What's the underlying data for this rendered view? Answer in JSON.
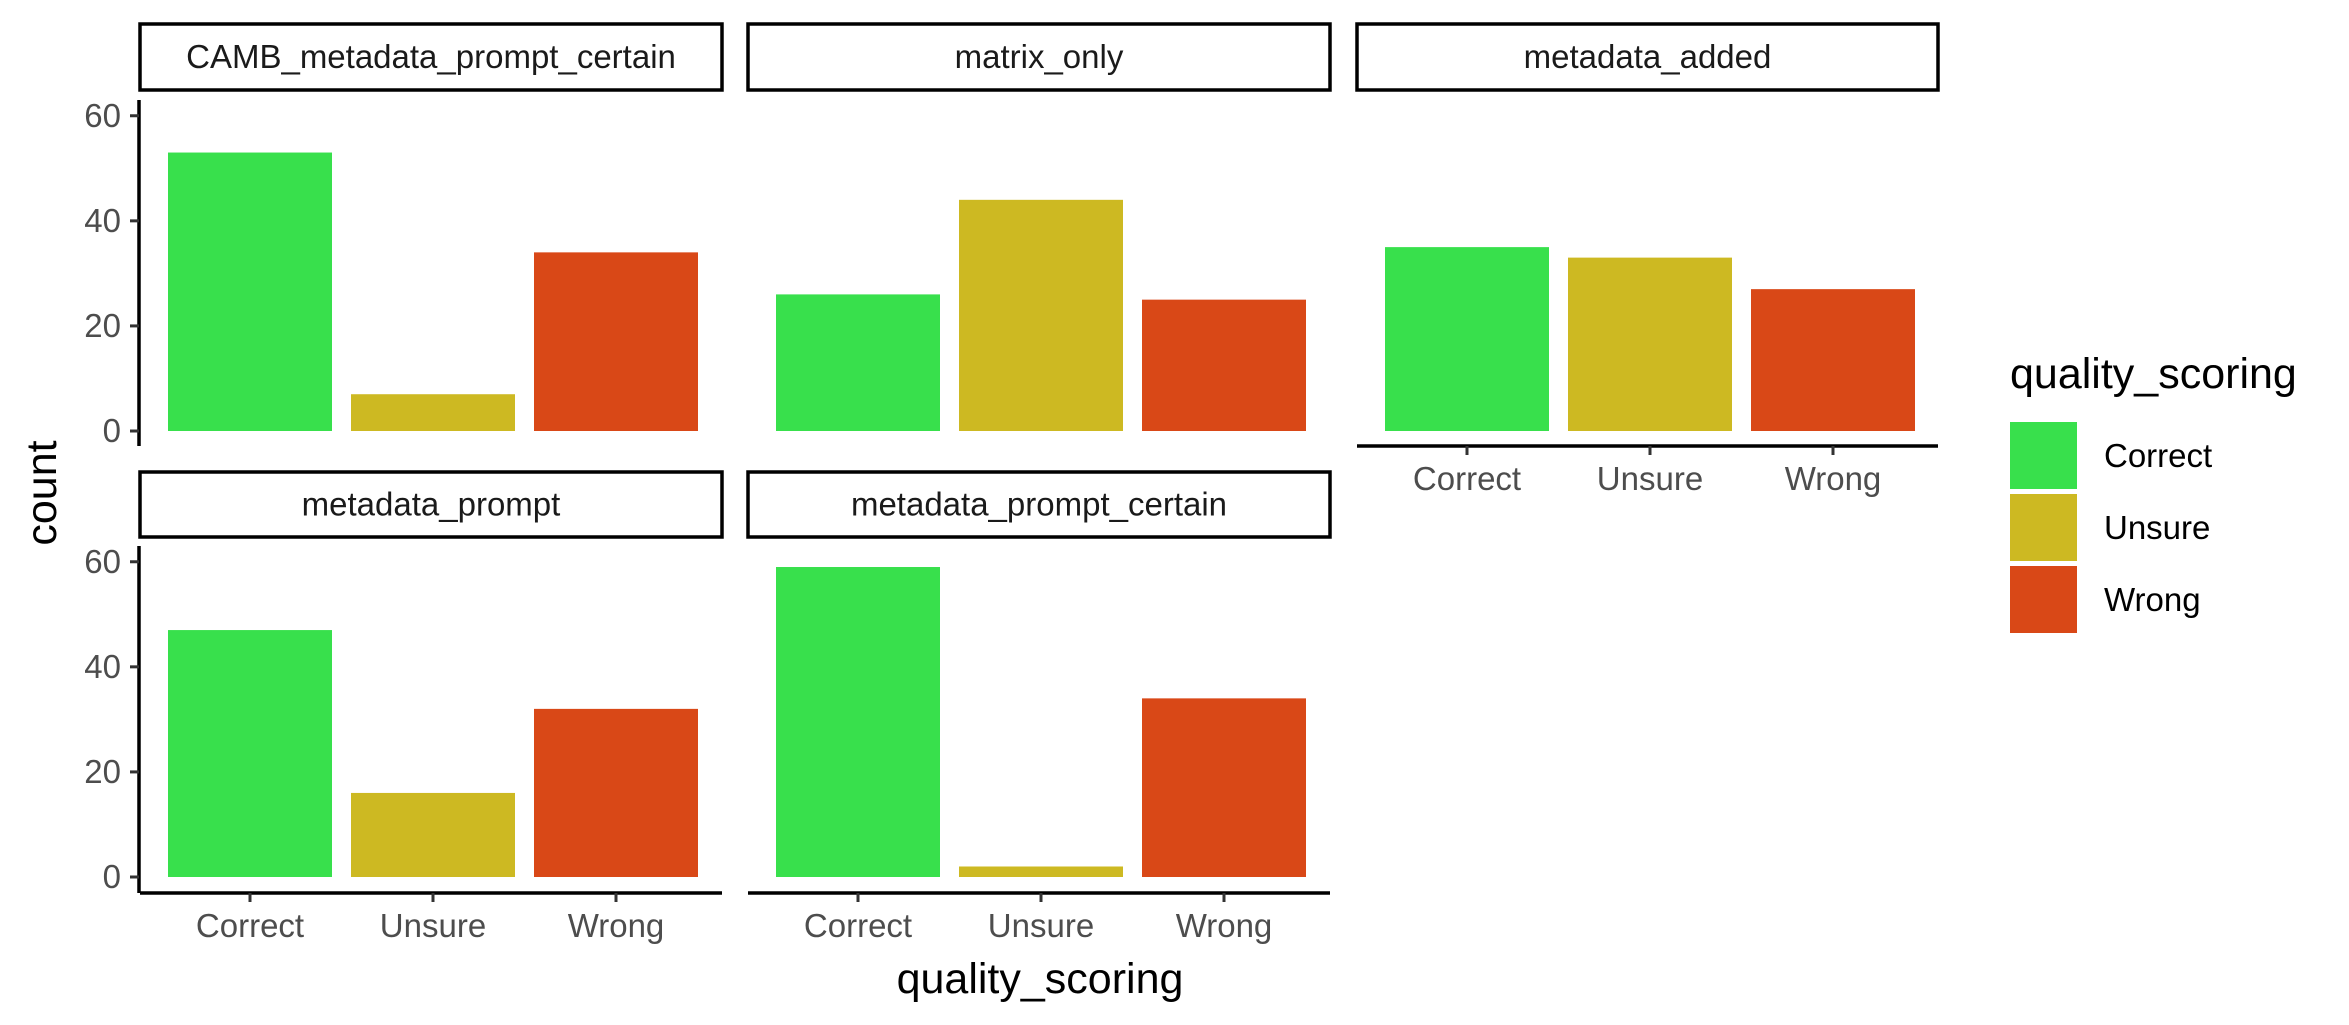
{
  "chart_data": {
    "type": "bar",
    "facet_variable": "",
    "panels": [
      {
        "title": "CAMB_metadata_prompt_certain",
        "categories": [
          "Correct",
          "Unsure",
          "Wrong"
        ],
        "values": [
          53,
          7,
          34
        ]
      },
      {
        "title": "matrix_only",
        "categories": [
          "Correct",
          "Unsure",
          "Wrong"
        ],
        "values": [
          26,
          44,
          25
        ]
      },
      {
        "title": "metadata_added",
        "categories": [
          "Correct",
          "Unsure",
          "Wrong"
        ],
        "values": [
          35,
          33,
          27
        ]
      },
      {
        "title": "metadata_prompt",
        "categories": [
          "Correct",
          "Unsure",
          "Wrong"
        ],
        "values": [
          47,
          16,
          32
        ]
      },
      {
        "title": "metadata_prompt_certain",
        "categories": [
          "Correct",
          "Unsure",
          "Wrong"
        ],
        "values": [
          59,
          2,
          34
        ]
      }
    ],
    "categories": [
      "Correct",
      "Unsure",
      "Wrong"
    ],
    "xlabel": "quality_scoring",
    "ylabel": "count",
    "ylim": [
      0,
      60
    ],
    "yticks": [
      0,
      20,
      40,
      60
    ],
    "grid": false,
    "legend": {
      "title": "quality_scoring",
      "placement": "right",
      "entries": [
        "Correct",
        "Unsure",
        "Wrong"
      ]
    },
    "colors": {
      "Correct": "#38E04C",
      "Unsure": "#CDB922",
      "Wrong": "#D94817"
    }
  }
}
